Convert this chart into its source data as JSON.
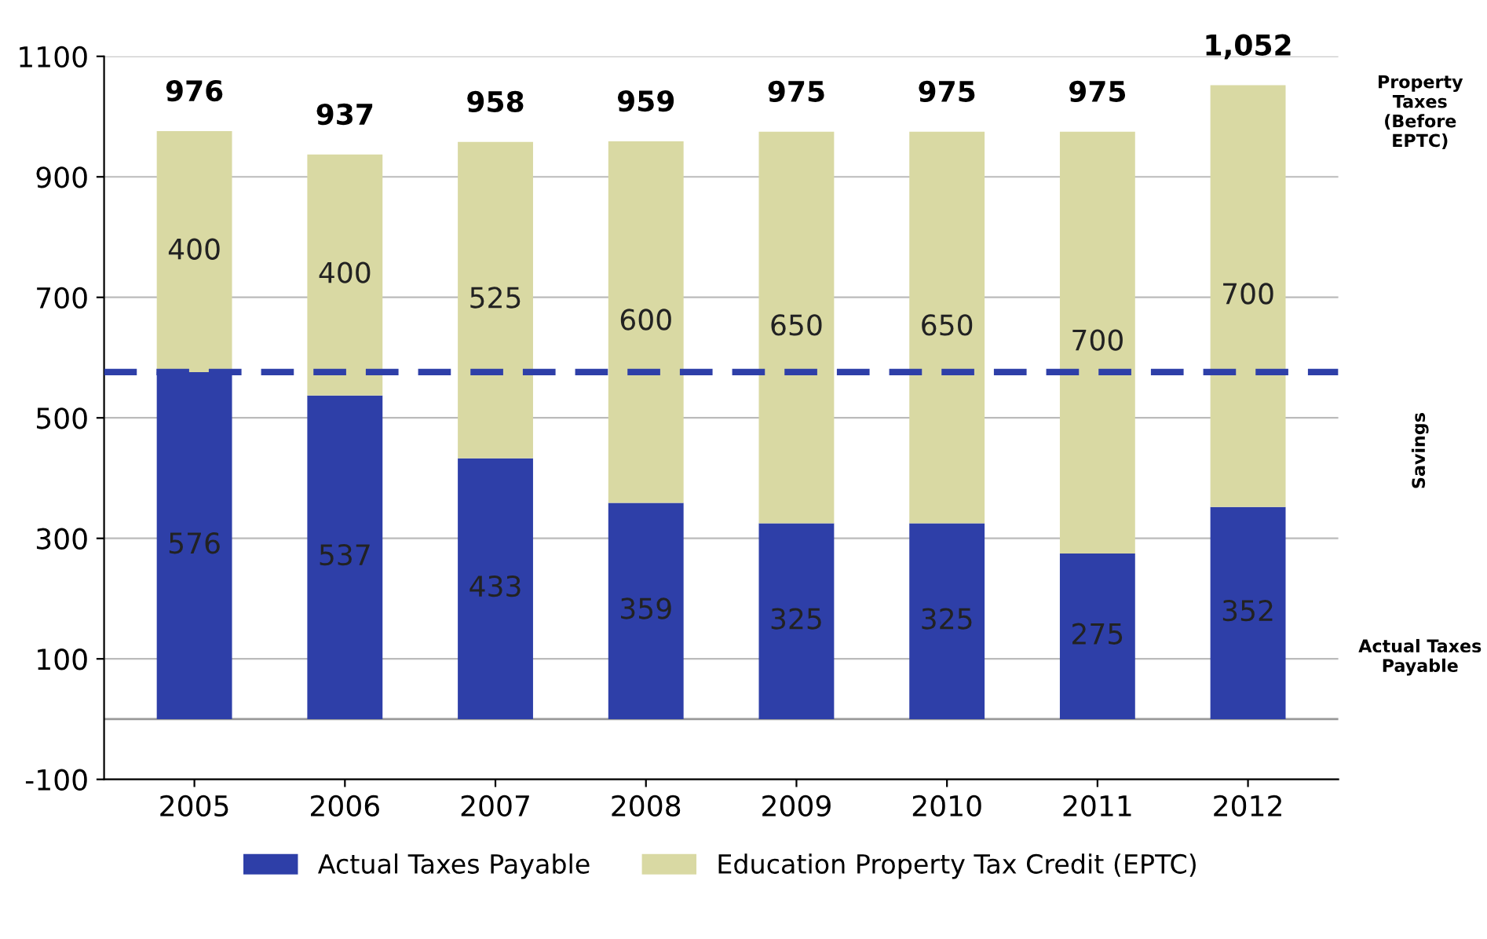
{
  "chart_data": {
    "type": "bar",
    "stacked": true,
    "categories": [
      "2005",
      "2006",
      "2007",
      "2008",
      "2009",
      "2010",
      "2011",
      "2012"
    ],
    "series": [
      {
        "name": "Actual Taxes Payable",
        "color": "#2e3fa8",
        "values": [
          576,
          537,
          433,
          359,
          325,
          325,
          275,
          352
        ]
      },
      {
        "name": "Education Property Tax Credit (EPTC)",
        "color": "#d9d9a3",
        "values": [
          400,
          400,
          525,
          600,
          650,
          650,
          700,
          700
        ]
      }
    ],
    "data_labels": true,
    "totals": [
      "976",
      "937",
      "958",
      "959",
      "975",
      "975",
      "975",
      "1,052"
    ],
    "ylim": [
      -100,
      1100
    ],
    "yticks": [
      -100,
      100,
      300,
      500,
      700,
      900,
      1100
    ],
    "grid": "y",
    "legend": "bottom",
    "ref_lines": [
      {
        "axis": "y",
        "value": 576,
        "color": "#2e3fa8",
        "line_style": "dashed"
      }
    ],
    "annotations": [
      "Property Taxes (Before EPTC)",
      "Savings",
      "Actual Taxes Payable"
    ]
  }
}
